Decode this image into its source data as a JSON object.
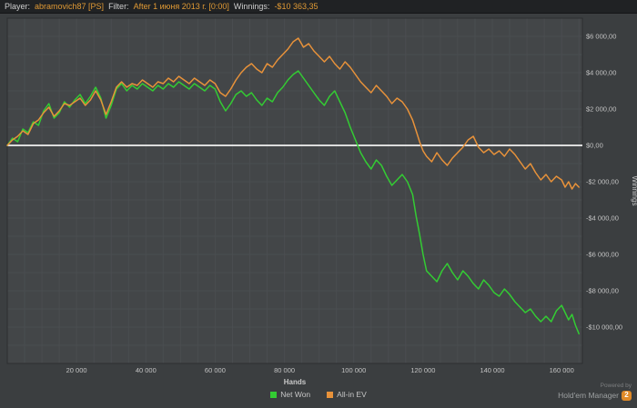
{
  "window": {
    "bg": "#3b3e40"
  },
  "top_bar": {
    "player_label": "Player:",
    "player_value": "abramovich87 [PS]",
    "filter_label": "Filter:",
    "filter_value": "After 1 июня 2013 г. [0:00]",
    "winnings_label": "Winnings:",
    "winnings_value": "-$10 363,35"
  },
  "chart_data": {
    "type": "line",
    "xlabel": "Hands",
    "ylabel": "Winnings",
    "xlim": [
      0,
      166000
    ],
    "ylim": [
      -12000,
      7000
    ],
    "plot_bg": "#434648",
    "border_color": "#2c2e30",
    "grid": {
      "x_step": 5000,
      "y_step": 1000,
      "color": "#4a4d50"
    },
    "zero_line": {
      "value": 0,
      "color": "#f2f2f2"
    },
    "x_ticks": [
      {
        "v": 20000,
        "label": "20 000"
      },
      {
        "v": 40000,
        "label": "40 000"
      },
      {
        "v": 60000,
        "label": "60 000"
      },
      {
        "v": 80000,
        "label": "80 000"
      },
      {
        "v": 100000,
        "label": "100 000"
      },
      {
        "v": 120000,
        "label": "120 000"
      },
      {
        "v": 140000,
        "label": "140 000"
      },
      {
        "v": 160000,
        "label": "160 000"
      }
    ],
    "y_ticks": [
      {
        "v": 6000,
        "label": "$6 000,00"
      },
      {
        "v": 4000,
        "label": "$4 000,00"
      },
      {
        "v": 2000,
        "label": "$2 000,00"
      },
      {
        "v": 0,
        "label": "$0,00"
      },
      {
        "v": -2000,
        "label": "-$2 000,00"
      },
      {
        "v": -4000,
        "label": "-$4 000,00"
      },
      {
        "v": -6000,
        "label": "-$6 000,00"
      },
      {
        "v": -8000,
        "label": "-$8 000,00"
      },
      {
        "v": -10000,
        "label": "-$10 000,00"
      }
    ],
    "series": [
      {
        "name": "Net Won",
        "color": "#33cc33",
        "points": [
          [
            0,
            0
          ],
          [
            1500,
            400
          ],
          [
            3000,
            200
          ],
          [
            4500,
            900
          ],
          [
            6000,
            700
          ],
          [
            7500,
            1300
          ],
          [
            9000,
            1100
          ],
          [
            10500,
            1900
          ],
          [
            12000,
            2300
          ],
          [
            13500,
            1500
          ],
          [
            15000,
            1800
          ],
          [
            16500,
            2400
          ],
          [
            18000,
            2100
          ],
          [
            19500,
            2500
          ],
          [
            21000,
            2800
          ],
          [
            22500,
            2300
          ],
          [
            24000,
            2700
          ],
          [
            25500,
            3200
          ],
          [
            27000,
            2600
          ],
          [
            28500,
            1500
          ],
          [
            30000,
            2200
          ],
          [
            31500,
            3100
          ],
          [
            33000,
            3400
          ],
          [
            34500,
            3000
          ],
          [
            36000,
            3300
          ],
          [
            37500,
            3100
          ],
          [
            39000,
            3400
          ],
          [
            40500,
            3200
          ],
          [
            42000,
            3000
          ],
          [
            43500,
            3300
          ],
          [
            45000,
            3100
          ],
          [
            46500,
            3400
          ],
          [
            48000,
            3200
          ],
          [
            49500,
            3500
          ],
          [
            51000,
            3300
          ],
          [
            52500,
            3100
          ],
          [
            54000,
            3400
          ],
          [
            55500,
            3200
          ],
          [
            57000,
            3000
          ],
          [
            58500,
            3300
          ],
          [
            60000,
            3100
          ],
          [
            61500,
            2400
          ],
          [
            63000,
            1900
          ],
          [
            64500,
            2300
          ],
          [
            66000,
            2800
          ],
          [
            67500,
            3000
          ],
          [
            69000,
            2700
          ],
          [
            70500,
            2900
          ],
          [
            72000,
            2500
          ],
          [
            73500,
            2200
          ],
          [
            75000,
            2600
          ],
          [
            76500,
            2400
          ],
          [
            78000,
            2900
          ],
          [
            79500,
            3200
          ],
          [
            81000,
            3600
          ],
          [
            82500,
            3900
          ],
          [
            84000,
            4100
          ],
          [
            85500,
            3700
          ],
          [
            87000,
            3300
          ],
          [
            88500,
            2900
          ],
          [
            90000,
            2500
          ],
          [
            91500,
            2200
          ],
          [
            93000,
            2700
          ],
          [
            94500,
            3000
          ],
          [
            96000,
            2400
          ],
          [
            97500,
            1800
          ],
          [
            99000,
            1000
          ],
          [
            100500,
            300
          ],
          [
            102000,
            -400
          ],
          [
            103500,
            -900
          ],
          [
            105000,
            -1300
          ],
          [
            106500,
            -800
          ],
          [
            108000,
            -1100
          ],
          [
            109500,
            -1700
          ],
          [
            111000,
            -2200
          ],
          [
            112500,
            -1900
          ],
          [
            114000,
            -1600
          ],
          [
            115500,
            -2000
          ],
          [
            117000,
            -2700
          ],
          [
            118000,
            -3900
          ],
          [
            119000,
            -4900
          ],
          [
            120000,
            -6000
          ],
          [
            121000,
            -6900
          ],
          [
            122500,
            -7200
          ],
          [
            124000,
            -7500
          ],
          [
            125500,
            -6900
          ],
          [
            127000,
            -6500
          ],
          [
            128500,
            -7000
          ],
          [
            130000,
            -7400
          ],
          [
            131500,
            -6900
          ],
          [
            133000,
            -7200
          ],
          [
            134500,
            -7600
          ],
          [
            136000,
            -7900
          ],
          [
            137500,
            -7400
          ],
          [
            139000,
            -7700
          ],
          [
            140500,
            -8100
          ],
          [
            142000,
            -8300
          ],
          [
            143500,
            -7900
          ],
          [
            145000,
            -8200
          ],
          [
            146500,
            -8600
          ],
          [
            148000,
            -8900
          ],
          [
            149500,
            -9200
          ],
          [
            151000,
            -9000
          ],
          [
            152500,
            -9400
          ],
          [
            154000,
            -9700
          ],
          [
            155500,
            -9400
          ],
          [
            157000,
            -9700
          ],
          [
            158500,
            -9100
          ],
          [
            160000,
            -8800
          ],
          [
            161000,
            -9200
          ],
          [
            162000,
            -9600
          ],
          [
            163000,
            -9300
          ],
          [
            164000,
            -9900
          ],
          [
            165000,
            -10363
          ]
        ]
      },
      {
        "name": "All-in EV",
        "color": "#e8923a",
        "points": [
          [
            0,
            0
          ],
          [
            1500,
            300
          ],
          [
            3000,
            500
          ],
          [
            4500,
            800
          ],
          [
            6000,
            600
          ],
          [
            7500,
            1200
          ],
          [
            9000,
            1400
          ],
          [
            10500,
            1800
          ],
          [
            12000,
            2100
          ],
          [
            13500,
            1600
          ],
          [
            15000,
            1900
          ],
          [
            16500,
            2300
          ],
          [
            18000,
            2200
          ],
          [
            19500,
            2400
          ],
          [
            21000,
            2600
          ],
          [
            22500,
            2200
          ],
          [
            24000,
            2500
          ],
          [
            25500,
            3000
          ],
          [
            27000,
            2500
          ],
          [
            28500,
            1700
          ],
          [
            30000,
            2400
          ],
          [
            31500,
            3200
          ],
          [
            33000,
            3500
          ],
          [
            34500,
            3200
          ],
          [
            36000,
            3400
          ],
          [
            37500,
            3300
          ],
          [
            39000,
            3600
          ],
          [
            40500,
            3400
          ],
          [
            42000,
            3200
          ],
          [
            43500,
            3500
          ],
          [
            45000,
            3400
          ],
          [
            46500,
            3700
          ],
          [
            48000,
            3500
          ],
          [
            49500,
            3800
          ],
          [
            51000,
            3600
          ],
          [
            52500,
            3400
          ],
          [
            54000,
            3700
          ],
          [
            55500,
            3500
          ],
          [
            57000,
            3300
          ],
          [
            58500,
            3600
          ],
          [
            60000,
            3400
          ],
          [
            61500,
            2900
          ],
          [
            63000,
            2700
          ],
          [
            64500,
            3100
          ],
          [
            66000,
            3600
          ],
          [
            67500,
            4000
          ],
          [
            69000,
            4300
          ],
          [
            70500,
            4500
          ],
          [
            72000,
            4200
          ],
          [
            73500,
            4000
          ],
          [
            75000,
            4500
          ],
          [
            76500,
            4300
          ],
          [
            78000,
            4700
          ],
          [
            79500,
            5000
          ],
          [
            81000,
            5300
          ],
          [
            82500,
            5700
          ],
          [
            84000,
            5900
          ],
          [
            85500,
            5400
          ],
          [
            87000,
            5600
          ],
          [
            88500,
            5200
          ],
          [
            90000,
            4900
          ],
          [
            91500,
            4600
          ],
          [
            93000,
            4900
          ],
          [
            94500,
            4500
          ],
          [
            96000,
            4200
          ],
          [
            97500,
            4600
          ],
          [
            99000,
            4300
          ],
          [
            100500,
            3900
          ],
          [
            102000,
            3500
          ],
          [
            103500,
            3200
          ],
          [
            105000,
            2900
          ],
          [
            106500,
            3300
          ],
          [
            108000,
            3000
          ],
          [
            109500,
            2700
          ],
          [
            111000,
            2300
          ],
          [
            112500,
            2600
          ],
          [
            114000,
            2400
          ],
          [
            115500,
            2000
          ],
          [
            117000,
            1400
          ],
          [
            118000,
            800
          ],
          [
            119000,
            200
          ],
          [
            120000,
            -300
          ],
          [
            121000,
            -600
          ],
          [
            122500,
            -900
          ],
          [
            124000,
            -400
          ],
          [
            125500,
            -800
          ],
          [
            127000,
            -1100
          ],
          [
            128500,
            -700
          ],
          [
            130000,
            -400
          ],
          [
            131500,
            -100
          ],
          [
            133000,
            300
          ],
          [
            134500,
            500
          ],
          [
            136000,
            -100
          ],
          [
            137500,
            -400
          ],
          [
            139000,
            -200
          ],
          [
            140500,
            -500
          ],
          [
            142000,
            -300
          ],
          [
            143500,
            -600
          ],
          [
            145000,
            -200
          ],
          [
            146500,
            -500
          ],
          [
            148000,
            -900
          ],
          [
            149500,
            -1300
          ],
          [
            151000,
            -1000
          ],
          [
            152500,
            -1500
          ],
          [
            154000,
            -1900
          ],
          [
            155500,
            -1600
          ],
          [
            157000,
            -2000
          ],
          [
            158500,
            -1700
          ],
          [
            160000,
            -1900
          ],
          [
            161000,
            -2300
          ],
          [
            162000,
            -2000
          ],
          [
            163000,
            -2400
          ],
          [
            164000,
            -2100
          ],
          [
            165000,
            -2300
          ]
        ]
      }
    ]
  },
  "legend": [
    {
      "label": "Net Won",
      "color": "#33cc33"
    },
    {
      "label": "All-in EV",
      "color": "#e8923a"
    }
  ],
  "branding": {
    "powered_by": "Powered by",
    "app_name": "Hold'em Manager",
    "badge": "2"
  }
}
